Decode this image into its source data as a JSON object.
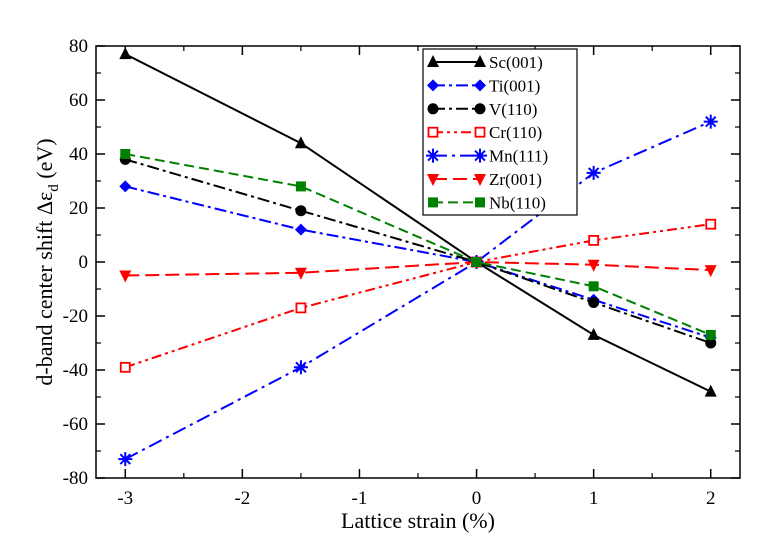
{
  "chart_data": {
    "type": "line",
    "xlabel": "Lattice strain (%)",
    "ylabel_main": "d-band center shift Δε",
    "ylabel_sub": "d",
    "ylabel_unit": " (eV)",
    "xlim": [
      -3.25,
      2.25
    ],
    "ylim": [
      -80,
      80
    ],
    "x_ticks": [
      -3,
      -2,
      -1,
      0,
      1,
      2
    ],
    "x_tick_labels": [
      "-3",
      "-2",
      "-1",
      "0",
      "1",
      "2"
    ],
    "y_ticks": [
      -80,
      -60,
      -40,
      -20,
      0,
      20,
      40,
      60,
      80
    ],
    "y_tick_labels": [
      "-80",
      "-60",
      "-40",
      "-20",
      "0",
      "20",
      "40",
      "60",
      "80"
    ],
    "legend_position": "top-right",
    "series": [
      {
        "name": "Sc(001)",
        "color": "#000000",
        "marker": "triangle-up",
        "dash": "",
        "x": [
          -3,
          -1.5,
          0,
          1,
          2
        ],
        "y": [
          77,
          44,
          0,
          -27,
          -48
        ]
      },
      {
        "name": "Ti(001)",
        "color": "#0000ff",
        "marker": "diamond",
        "dash": "12,4,3,4",
        "x": [
          -3,
          -1.5,
          0,
          1,
          2
        ],
        "y": [
          28,
          12,
          0,
          -14,
          -28
        ]
      },
      {
        "name": "V(110)",
        "color": "#000000",
        "marker": "circle",
        "dash": "12,4,3,4",
        "x": [
          -3,
          -1.5,
          0,
          1,
          2
        ],
        "y": [
          38,
          19,
          0,
          -15,
          -30
        ]
      },
      {
        "name": "Cr(110)",
        "color": "#ff0000",
        "marker": "square-open",
        "dash": "10,4,3,4,3,4",
        "x": [
          -3,
          -1.5,
          0,
          1,
          2
        ],
        "y": [
          -39,
          -17,
          0,
          8,
          14
        ]
      },
      {
        "name": "Mn(111)",
        "color": "#0000ff",
        "marker": "star",
        "dash": "14,5,3,5",
        "x": [
          -3,
          -1.5,
          0,
          1,
          2
        ],
        "y": [
          -73,
          -39,
          0,
          33,
          52
        ]
      },
      {
        "name": "Zr(001)",
        "color": "#ff0000",
        "marker": "triangle-down",
        "dash": "14,6",
        "x": [
          -3,
          -1.5,
          0,
          1,
          2
        ],
        "y": [
          -5,
          -4,
          0,
          -1,
          -3
        ]
      },
      {
        "name": "Nb(110)",
        "color": "#008000",
        "marker": "square",
        "dash": "10,5",
        "x": [
          -3,
          -1.5,
          0,
          1,
          2
        ],
        "y": [
          40,
          28,
          0,
          -9,
          -27
        ]
      }
    ]
  }
}
